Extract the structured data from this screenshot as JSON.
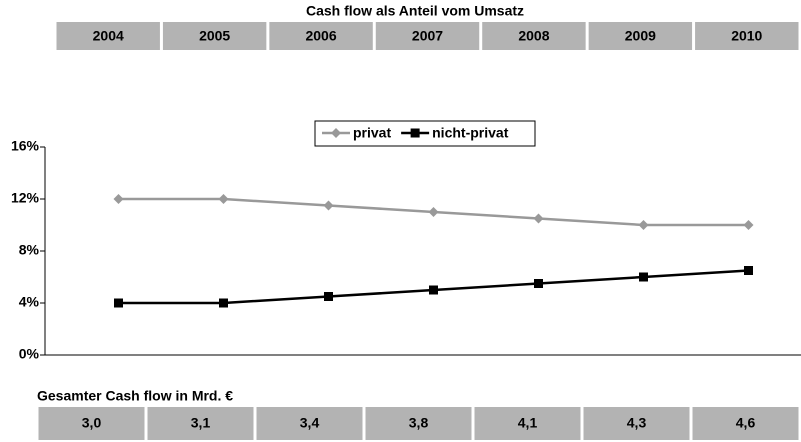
{
  "chart_data": {
    "type": "line",
    "title": "Cash flow als Anteil vom Umsatz",
    "categories": [
      "2004",
      "2005",
      "2006",
      "2007",
      "2008",
      "2009",
      "2010"
    ],
    "series": [
      {
        "name": "privat",
        "color": "#999999",
        "marker": "diamond",
        "values": [
          12,
          12,
          11.5,
          11,
          10.5,
          10,
          10
        ]
      },
      {
        "name": "nicht-privat",
        "color": "#000000",
        "marker": "square",
        "values": [
          4,
          4,
          4.5,
          5,
          5.5,
          6,
          6.5
        ]
      }
    ],
    "ylim": [
      0,
      16
    ],
    "yticks": [
      {
        "value": 0,
        "label": "0%"
      },
      {
        "value": 4,
        "label": "4%"
      },
      {
        "value": 8,
        "label": "8%"
      },
      {
        "value": 12,
        "label": "12%"
      },
      {
        "value": 16,
        "label": "16%"
      }
    ],
    "grid": false,
    "legend": "top",
    "totals": {
      "label": "Gesamter Cash flow in Mrd. €",
      "cells": [
        "3,0",
        "3,1",
        "3,4",
        "3,8",
        "4,1",
        "4,3",
        "4,6"
      ]
    }
  }
}
